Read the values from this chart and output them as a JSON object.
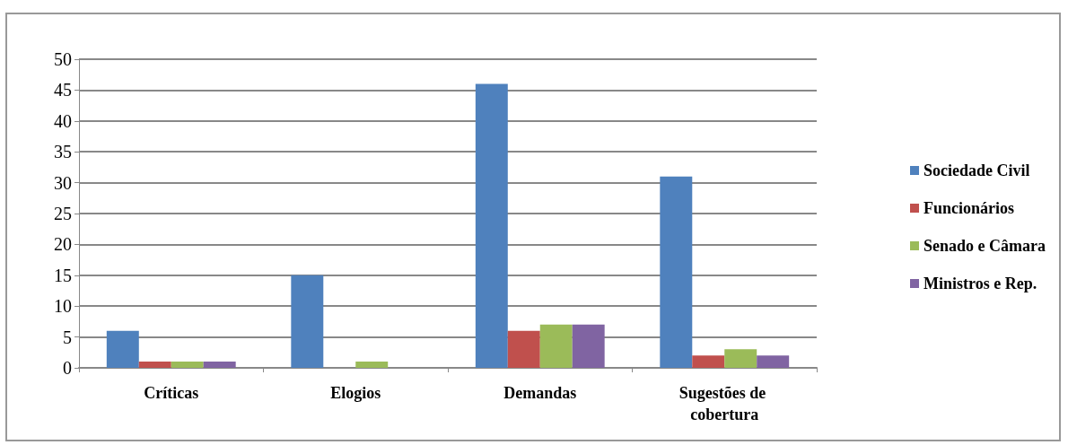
{
  "chart_data": {
    "type": "bar",
    "categories": [
      "Críticas",
      "Elogios",
      "Demandas",
      "Sugestões de cobertura"
    ],
    "series": [
      {
        "name": "Sociedade Civil",
        "color": "#4f81bd",
        "values": [
          6,
          15,
          46,
          31
        ]
      },
      {
        "name": "Funcionários",
        "color": "#c0504d",
        "values": [
          1,
          0,
          6,
          2
        ]
      },
      {
        "name": "Senado e Câmara",
        "color": "#9bbb59",
        "values": [
          1,
          1,
          7,
          3
        ]
      },
      {
        "name": "Ministros e Rep.",
        "color": "#8064a2",
        "values": [
          1,
          0,
          7,
          2
        ]
      }
    ],
    "ylim": [
      0,
      50
    ],
    "yticks": [
      0,
      5,
      10,
      15,
      20,
      25,
      30,
      35,
      40,
      45,
      50
    ],
    "grid": "y",
    "legend": "right"
  }
}
